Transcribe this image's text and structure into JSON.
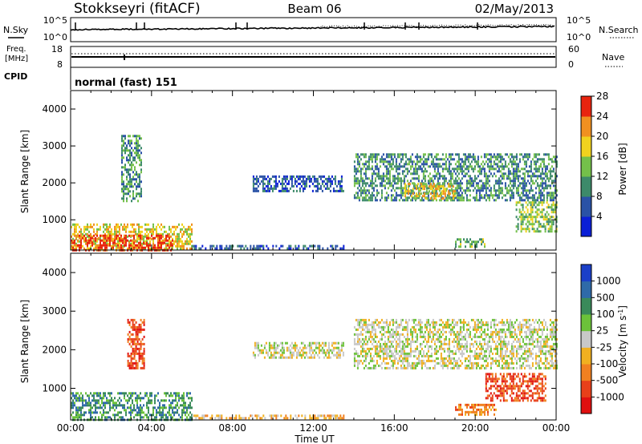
{
  "header": {
    "station": "Stokkseyri (fitACF)",
    "beam": "Beam 06",
    "date": "02/May/2013"
  },
  "top_panels": {
    "nsky_label": "N.Sky",
    "nsky_ticks": [
      "10^5",
      "10^0"
    ],
    "nsearch_label": "N.Search",
    "nsearch_ticks": [
      "10^5",
      "10^0"
    ],
    "freq_label": "Freq.",
    "freq_unit": "[MHz]",
    "freq_ticks": [
      "18",
      "8"
    ],
    "nave_label": "Nave",
    "nave_ticks": [
      "60",
      "0"
    ],
    "cpid_label": "CPID",
    "cpid_value": "normal (fast) 151"
  },
  "chart_data": [
    {
      "type": "heatmap",
      "name": "power",
      "ylabel": "Slant Range [km]",
      "yticks": [
        "1000",
        "2000",
        "3000",
        "4000"
      ],
      "ylim": [
        180,
        4500
      ],
      "xlim_hours": [
        0,
        24
      ],
      "colorbar_label": "Power [dB]",
      "colorbar_ticks": [
        "4",
        "8",
        "12",
        "16",
        "20",
        "24",
        "28"
      ],
      "colorbar_colors": [
        "#0b1fd6",
        "#2a52a6",
        "#3d8a6a",
        "#74c04a",
        "#f0d21e",
        "#f09020",
        "#e8240f"
      ],
      "regions": [
        {
          "t": [
            0.0,
            6.0
          ],
          "r": [
            200,
            900
          ],
          "level": 4
        },
        {
          "t": [
            0.0,
            5.0
          ],
          "r": [
            200,
            600
          ],
          "level": 6
        },
        {
          "t": [
            2.5,
            3.5
          ],
          "r": [
            1500,
            3300
          ],
          "level": 2
        },
        {
          "t": [
            6.0,
            13.5
          ],
          "r": [
            200,
            320
          ],
          "level": 1
        },
        {
          "t": [
            9.0,
            13.5
          ],
          "r": [
            1800,
            2200
          ],
          "level": 1
        },
        {
          "t": [
            14.0,
            24.0
          ],
          "r": [
            1500,
            2800
          ],
          "level": 2
        },
        {
          "t": [
            16.5,
            19.0
          ],
          "r": [
            1600,
            2000
          ],
          "level": 4
        },
        {
          "t": [
            19.0,
            20.5
          ],
          "r": [
            300,
            500
          ],
          "level": 3
        },
        {
          "t": [
            22.0,
            24.0
          ],
          "r": [
            700,
            1500
          ],
          "level": 3
        }
      ]
    },
    {
      "type": "heatmap",
      "name": "velocity",
      "ylabel": "Slant Range [km]",
      "yticks": [
        "1000",
        "2000",
        "3000",
        "4000"
      ],
      "ylim": [
        180,
        4500
      ],
      "xlim_hours": [
        0,
        24
      ],
      "xticks": [
        "00:00",
        "04:00",
        "08:00",
        "12:00",
        "16:00",
        "20:00",
        "00:00"
      ],
      "xlabel": "Time UT",
      "colorbar_label": "Velocity [m s",
      "colorbar_label_sup": "-1",
      "colorbar_label_end": "]",
      "colorbar_ticks": [
        "1000",
        "500",
        "100",
        "25",
        "-25",
        "-100",
        "-500",
        "-1000"
      ],
      "colorbar_colors": [
        "#1b3fc8",
        "#2f6aa8",
        "#3a8a5a",
        "#6cc23a",
        "#c8c8c8",
        "#f0b020",
        "#f08020",
        "#e8401a",
        "#e01010"
      ],
      "regions": [
        {
          "t": [
            0.0,
            6.0
          ],
          "r": [
            200,
            900
          ],
          "level": 2
        },
        {
          "t": [
            2.8,
            3.6
          ],
          "r": [
            1500,
            2800
          ],
          "level": 7
        },
        {
          "t": [
            6.0,
            13.5
          ],
          "r": [
            200,
            320
          ],
          "level": 5
        },
        {
          "t": [
            9.0,
            13.5
          ],
          "r": [
            1800,
            2200
          ],
          "level": 4
        },
        {
          "t": [
            14.0,
            24.0
          ],
          "r": [
            1500,
            2800
          ],
          "level": 4
        },
        {
          "t": [
            19.0,
            21.0
          ],
          "r": [
            350,
            600
          ],
          "level": 6
        },
        {
          "t": [
            20.5,
            23.5
          ],
          "r": [
            700,
            1400
          ],
          "level": 7
        }
      ]
    }
  ],
  "colors": {
    "axis": "#000000",
    "trace": "#000000"
  }
}
